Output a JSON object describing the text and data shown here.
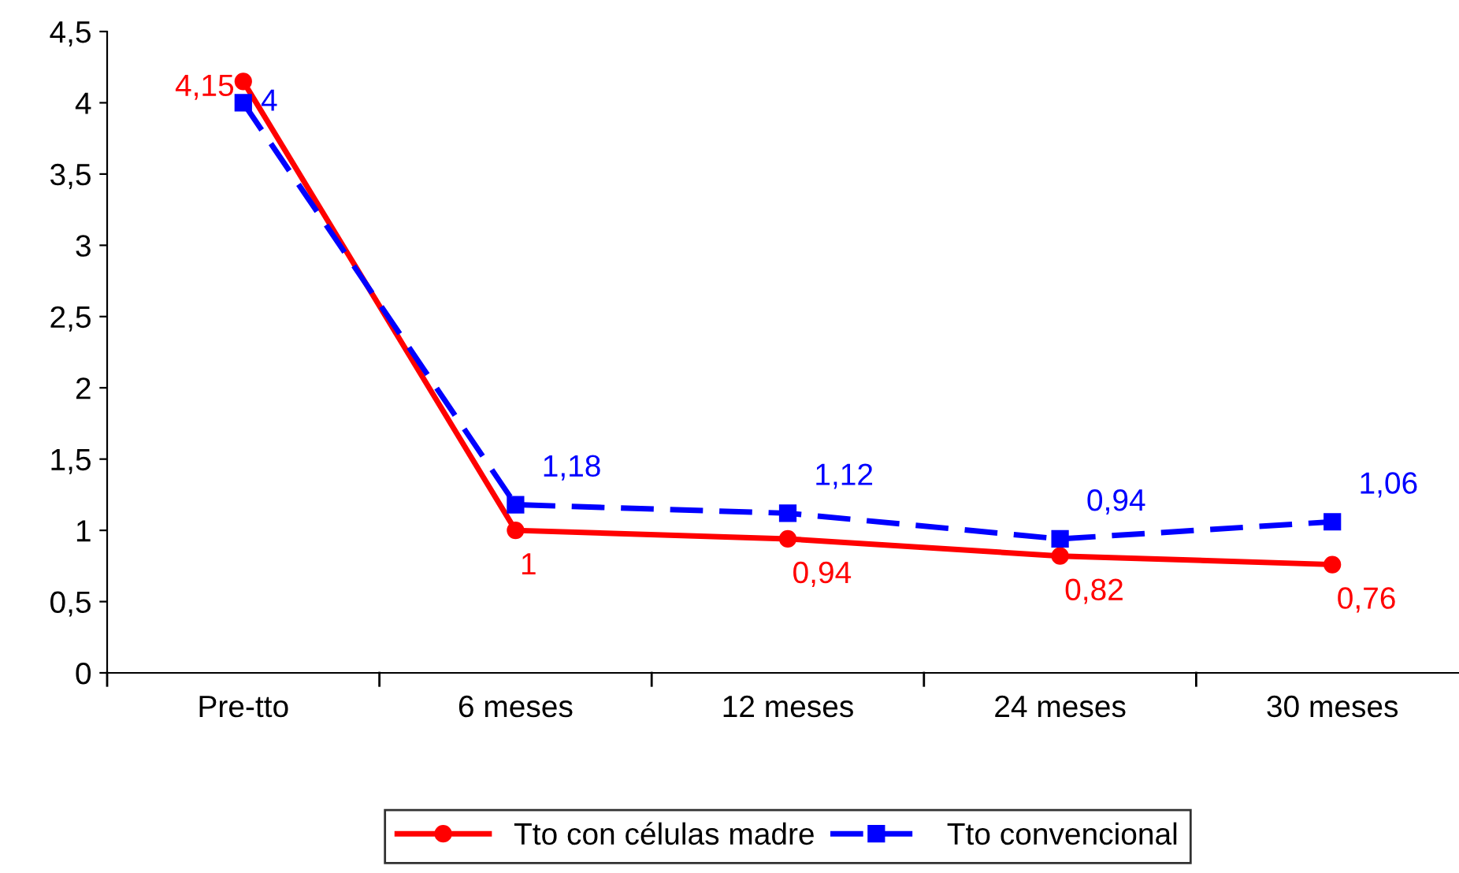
{
  "chart_data": {
    "type": "line",
    "categories": [
      "Pre-tto",
      "6 meses",
      "12 meses",
      "24 meses",
      "30 meses"
    ],
    "series": [
      {
        "name": "Tto con células madre",
        "color": "#ff0000",
        "marker": "circle",
        "line_style": "solid",
        "values": [
          4.15,
          1,
          0.94,
          0.82,
          0.76
        ],
        "value_labels": [
          "4,15",
          "1",
          "0,94",
          "0,82",
          "0,76"
        ]
      },
      {
        "name": "Tto convencional",
        "color": "#0000ff",
        "marker": "square",
        "line_style": "dashed",
        "values": [
          4,
          1.18,
          1.12,
          0.94,
          1.06
        ],
        "value_labels": [
          "4",
          "1,18",
          "1,12",
          "0,94",
          "1,06"
        ]
      }
    ],
    "ylim": [
      0,
      4.5
    ],
    "yticks": [
      0,
      {
        "value": 0.5,
        "label": "0,5"
      },
      1,
      {
        "value": 1.5,
        "label": "1,5"
      },
      2,
      {
        "value": 2.5,
        "label": "2,5"
      },
      3,
      {
        "value": 3.5,
        "label": "3,5"
      },
      4,
      {
        "value": 4.5,
        "label": "4,5"
      }
    ],
    "grid": false,
    "legend": "bottom"
  }
}
